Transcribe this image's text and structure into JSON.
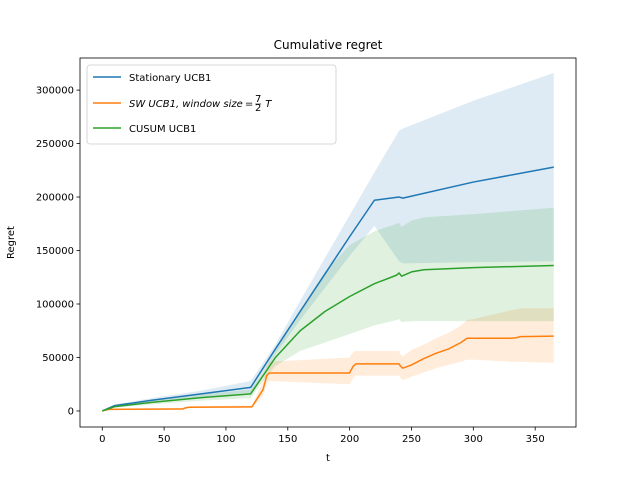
{
  "chart_data": {
    "type": "line",
    "title": "Cumulative regret",
    "xlabel": "t",
    "ylabel": "Regret",
    "xlim": [
      -18,
      383
    ],
    "ylim": [
      -15000,
      330000
    ],
    "xticks": [
      0,
      50,
      100,
      150,
      200,
      250,
      300,
      350
    ],
    "yticks": [
      0,
      50000,
      100000,
      150000,
      200000,
      250000,
      300000
    ],
    "grid": false,
    "legend_position": "top-left",
    "series": [
      {
        "name": "Stationary UCB1",
        "color": "#1f77b4",
        "x": [
          0,
          10,
          40,
          80,
          120,
          140,
          160,
          180,
          200,
          220,
          240,
          243,
          300,
          365
        ],
        "y": [
          0,
          5000,
          10000,
          16000,
          22000,
          58000,
          93000,
          128000,
          163000,
          197000,
          200000,
          199000,
          214000,
          228000
        ],
        "band_upper": [
          0,
          6000,
          12000,
          19000,
          28000,
          62000,
          103000,
          143000,
          183000,
          223000,
          262000,
          264000,
          290000,
          316000
        ],
        "band_lower": [
          0,
          4000,
          8000,
          13000,
          17000,
          53000,
          85000,
          115000,
          145000,
          173000,
          140000,
          138000,
          139000,
          140000
        ]
      },
      {
        "name": "SW UCB1, window size = 7/2 T",
        "name_parts": {
          "prefix": "SW UCB1, window size",
          "eq": "=",
          "num": "7",
          "den": "2",
          "suffix": "T"
        },
        "color": "#ff7f0e",
        "x": [
          0,
          5,
          60,
          65,
          67,
          70,
          120,
          121,
          130,
          133,
          135,
          200,
          201,
          203,
          205,
          240,
          241,
          243,
          250,
          260,
          270,
          280,
          290,
          295,
          300,
          330,
          335,
          338,
          365
        ],
        "y": [
          0,
          1500,
          1800,
          1800,
          2800,
          3500,
          3800,
          3800,
          20000,
          33000,
          35500,
          35500,
          38000,
          42000,
          44000,
          44000,
          42000,
          40000,
          43000,
          49000,
          54000,
          58000,
          64000,
          68000,
          68000,
          68000,
          68500,
          69500,
          70000
        ],
        "band_upper": [
          0,
          2000,
          2500,
          2500,
          3500,
          4500,
          5000,
          5000,
          28000,
          41000,
          46000,
          50000,
          52000,
          55000,
          56000,
          56000,
          53000,
          51000,
          57000,
          62000,
          68000,
          73000,
          80000,
          85000,
          86000,
          94000,
          95000,
          96000,
          96000
        ],
        "band_lower": [
          0,
          1000,
          1200,
          1200,
          2100,
          2700,
          3000,
          3000,
          14000,
          25000,
          28000,
          25000,
          27000,
          31000,
          33000,
          33000,
          31000,
          29000,
          32000,
          36000,
          40000,
          43000,
          46000,
          48000,
          48000,
          46000,
          46000,
          46000,
          45000
        ]
      },
      {
        "name": "CUSUM UCB1",
        "color": "#2ca02c",
        "x": [
          0,
          10,
          40,
          80,
          120,
          130,
          140,
          160,
          180,
          200,
          220,
          238,
          240,
          242,
          250,
          260,
          300,
          365
        ],
        "y": [
          0,
          4000,
          8000,
          12500,
          16000,
          33000,
          50000,
          75000,
          93000,
          107000,
          119000,
          127000,
          129000,
          126000,
          130000,
          132000,
          134000,
          136000
        ],
        "band_upper": [
          0,
          5000,
          10000,
          15500,
          20000,
          36000,
          56000,
          95000,
          130000,
          155000,
          168000,
          175000,
          176000,
          172000,
          178000,
          181000,
          184000,
          190000
        ],
        "band_lower": [
          0,
          3000,
          6000,
          9500,
          12000,
          28000,
          42000,
          56000,
          64000,
          72000,
          80000,
          85000,
          86000,
          83000,
          84000,
          84000,
          84000,
          84000
        ]
      }
    ]
  }
}
